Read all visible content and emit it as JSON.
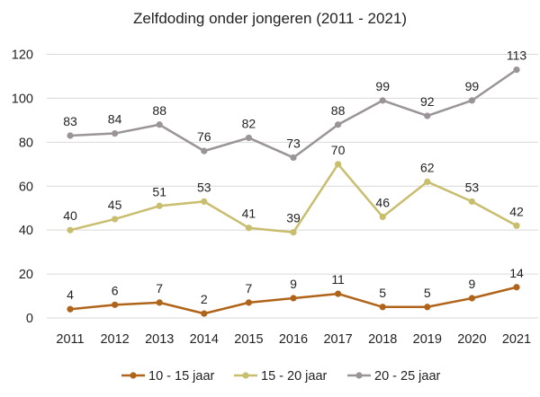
{
  "chart_data": {
    "type": "line",
    "title": "Zelfdoding onder jongeren (2011 - 2021)",
    "xlabel": "",
    "ylabel": "",
    "x": [
      "2011",
      "2012",
      "2013",
      "2014",
      "2015",
      "2016",
      "2017",
      "2018",
      "2019",
      "2020",
      "2021"
    ],
    "ylim": [
      0,
      120
    ],
    "yticks": [
      0,
      20,
      40,
      60,
      80,
      100,
      120
    ],
    "grid": true,
    "legend_position": "bottom",
    "series": [
      {
        "name": "10 - 15 jaar",
        "color": "#b0641a",
        "values": [
          4,
          6,
          7,
          2,
          7,
          9,
          11,
          5,
          5,
          9,
          14
        ]
      },
      {
        "name": "15 - 20 jaar",
        "color": "#c9bd6e",
        "values": [
          40,
          45,
          51,
          53,
          41,
          39,
          70,
          46,
          62,
          53,
          42
        ]
      },
      {
        "name": "20 - 25 jaar",
        "color": "#9a9499",
        "values": [
          83,
          84,
          88,
          76,
          82,
          73,
          88,
          99,
          92,
          99,
          113
        ]
      }
    ]
  }
}
